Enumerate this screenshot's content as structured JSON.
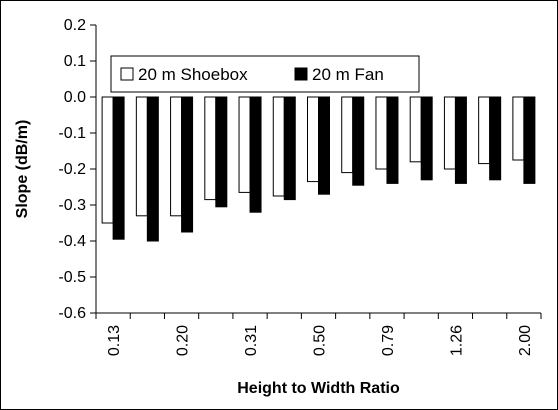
{
  "chart_data": {
    "type": "bar",
    "title": "",
    "xlabel": "Height to Width Ratio",
    "ylabel": "Slope (dB/m)",
    "ylim": [
      -0.6,
      0.2
    ],
    "ytick_step": 0.1,
    "yticks": [
      "0.2",
      "0.1",
      "0.0",
      "-0.1",
      "-0.2",
      "-0.3",
      "-0.4",
      "-0.5",
      "-0.6"
    ],
    "categories": [
      "0.13",
      "",
      "0.20",
      "",
      "0.31",
      "",
      "0.50",
      "",
      "0.79",
      "",
      "1.26",
      "",
      "2.00"
    ],
    "series": [
      {
        "name": "20 m Shoebox",
        "color": "#ffffff",
        "values": [
          -0.35,
          -0.33,
          -0.33,
          -0.285,
          -0.265,
          -0.275,
          -0.235,
          -0.21,
          -0.2,
          -0.18,
          -0.2,
          -0.185,
          -0.175
        ]
      },
      {
        "name": "20 m Fan",
        "color": "#000000",
        "values": [
          -0.395,
          -0.4,
          -0.375,
          -0.305,
          -0.32,
          -0.285,
          -0.27,
          -0.245,
          -0.24,
          -0.23,
          -0.24,
          -0.23,
          -0.24
        ]
      }
    ],
    "grid": false,
    "legend_position": "top-left"
  }
}
